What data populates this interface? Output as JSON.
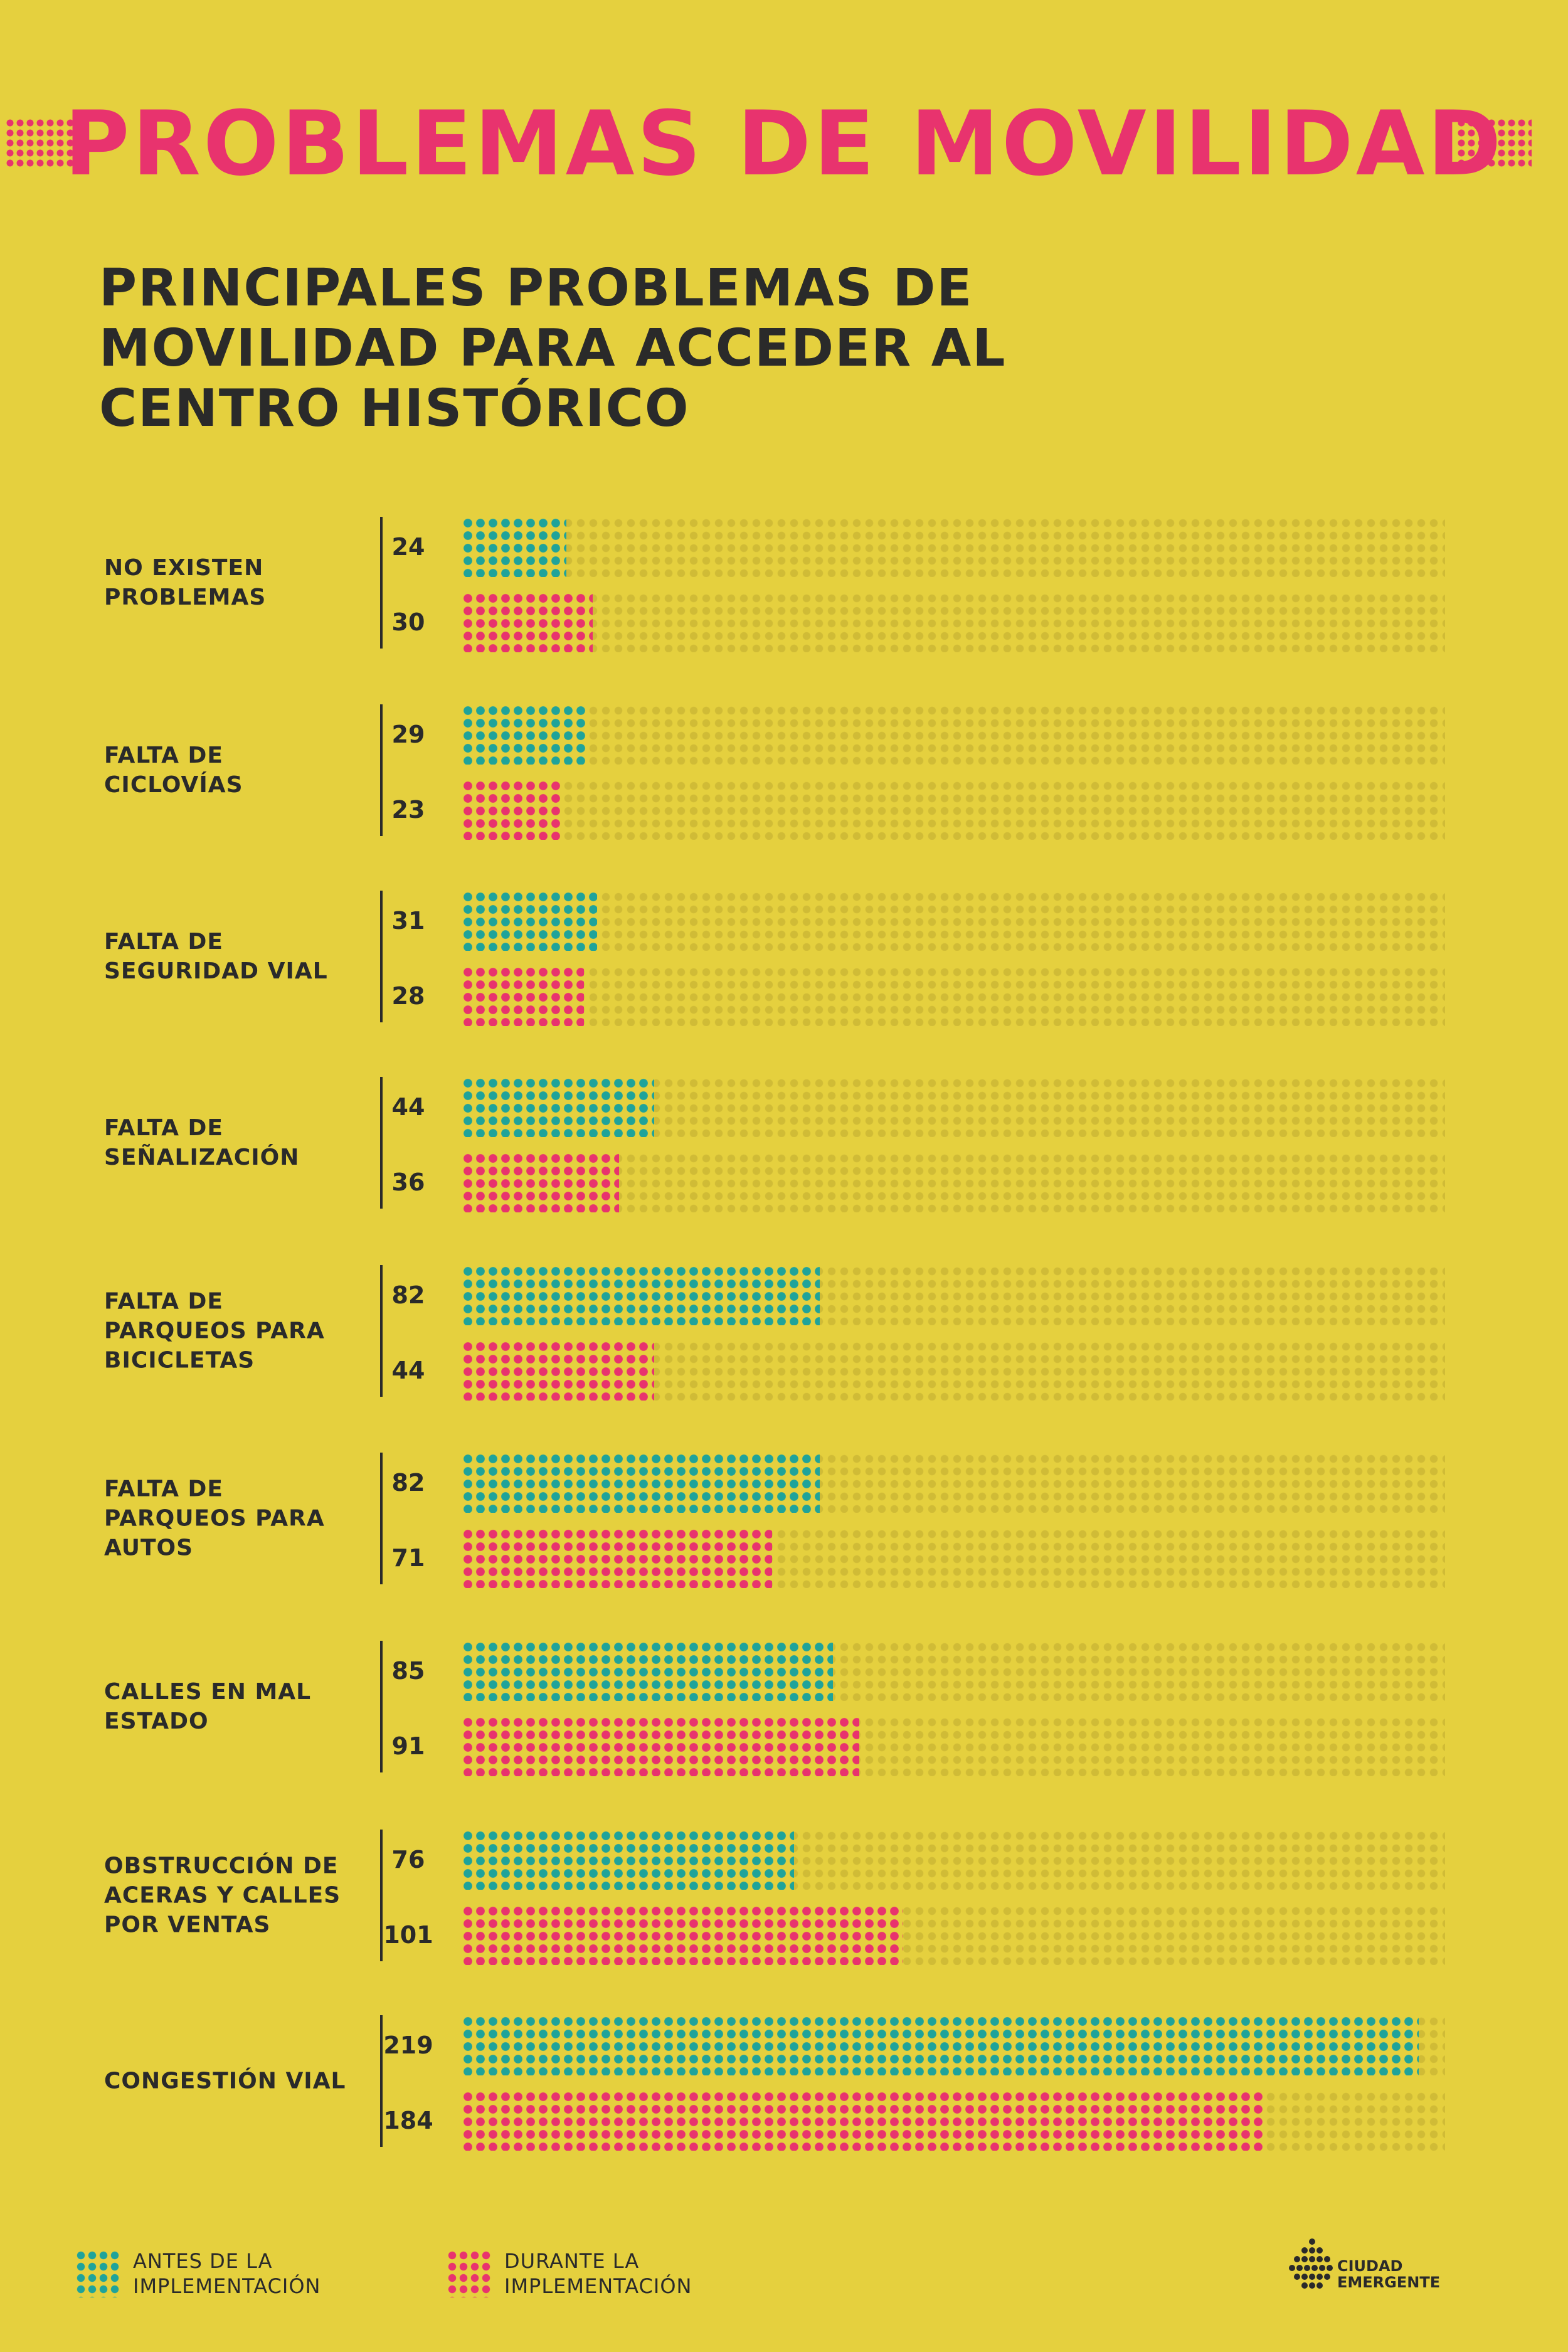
{
  "page_title": "PROBLEMAS DE MOVILIDAD",
  "colors": {
    "background": "#e5d03e",
    "antes": "#1fa39a",
    "durante": "#e8336e",
    "text": "#2a2a2a"
  },
  "chart_data": {
    "type": "bar",
    "orientation": "horizontal",
    "title": "PRINCIPALES PROBLEMAS DE\nMOVILIDAD PARA ACCEDER AL\nCENTRO HISTÓRICO",
    "categories": [
      "NO EXISTEN\nPROBLEMAS",
      "FALTA DE\nCICLOVÍAS",
      "FALTA DE\nSEGURIDAD VIAL",
      "FALTA DE\nSEÑALIZACIÓN",
      "FALTA DE\nPARQUEOS PARA\nBICICLETAS",
      "FALTA DE\nPARQUEOS PARA\nAUTOS",
      "CALLES EN MAL\nESTADO",
      "OBSTRUCCIÓN DE\nACERAS Y CALLES\nPOR VENTAS",
      "CONGESTIÓN VIAL"
    ],
    "series": [
      {
        "name": "ANTES DE LA\nIMPLEMENTACIÓN",
        "values": [
          24,
          29,
          31,
          44,
          82,
          82,
          85,
          76,
          219
        ]
      },
      {
        "name": "DURANTE LA\nIMPLEMENTACIÓN",
        "values": [
          30,
          23,
          28,
          36,
          44,
          71,
          91,
          101,
          184
        ]
      }
    ],
    "xlim": [
      0,
      225
    ],
    "legend_position": "bottom"
  },
  "logo": {
    "text": "CIUDAD\nEMERGENTE"
  }
}
